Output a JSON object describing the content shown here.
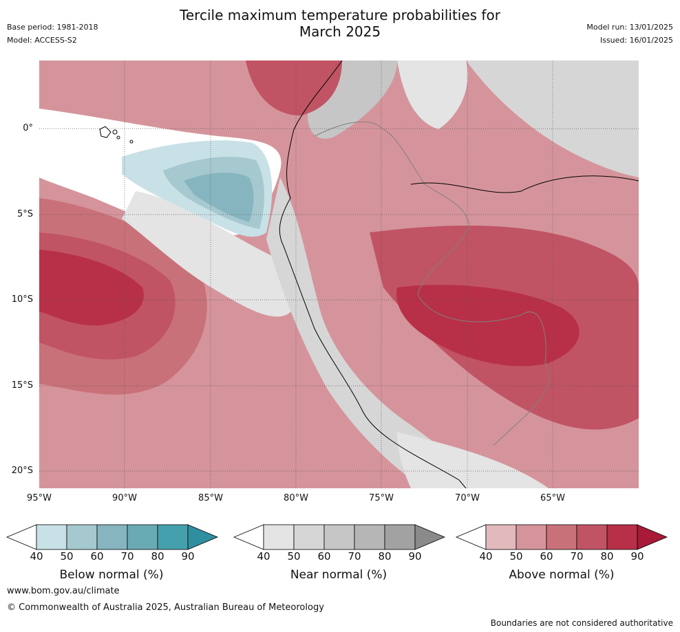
{
  "header": {
    "title_line1": "Tercile maximum temperature probabilities for",
    "title_line2": "March 2025",
    "base_period": "Base period: 1981-2018",
    "model": "Model: ACCESS-S2",
    "model_run": "Model run: 13/01/2025",
    "issued": "Issued: 16/01/2025"
  },
  "map": {
    "lat_labels": [
      "0°",
      "5°S",
      "10°S",
      "15°S",
      "20°S"
    ],
    "lon_labels": [
      "95°W",
      "90°W",
      "85°W",
      "80°W",
      "75°W",
      "70°W",
      "65°W"
    ],
    "lat_range": [
      -21,
      4
    ],
    "lon_range": [
      -95,
      -60
    ]
  },
  "colorbars": [
    {
      "title": "Below normal (%)",
      "ticks": [
        "40",
        "50",
        "60",
        "70",
        "80",
        "90"
      ],
      "colors": [
        "#c8e1e6",
        "#a6c8cf",
        "#86b5c0",
        "#6aaab5",
        "#45a0ad",
        "#2f8fa0"
      ]
    },
    {
      "title": "Near normal (%)",
      "ticks": [
        "40",
        "50",
        "60",
        "70",
        "80",
        "90"
      ],
      "colors": [
        "#e4e4e4",
        "#d6d6d6",
        "#c6c6c6",
        "#b6b6b6",
        "#a2a2a2",
        "#8a8a8a"
      ]
    },
    {
      "title": "Above normal (%)",
      "ticks": [
        "40",
        "50",
        "60",
        "70",
        "80",
        "90"
      ],
      "colors": [
        "#e2b9bd",
        "#d5949b",
        "#c97179",
        "#c05464",
        "#b83047",
        "#a81a37"
      ]
    }
  ],
  "footer": {
    "url": "www.bom.gov.au/climate",
    "copyright": "© Commonwealth of Australia 2025, Australian Bureau of Meteorology",
    "disclaimer": "Boundaries are not considered authoritative"
  }
}
